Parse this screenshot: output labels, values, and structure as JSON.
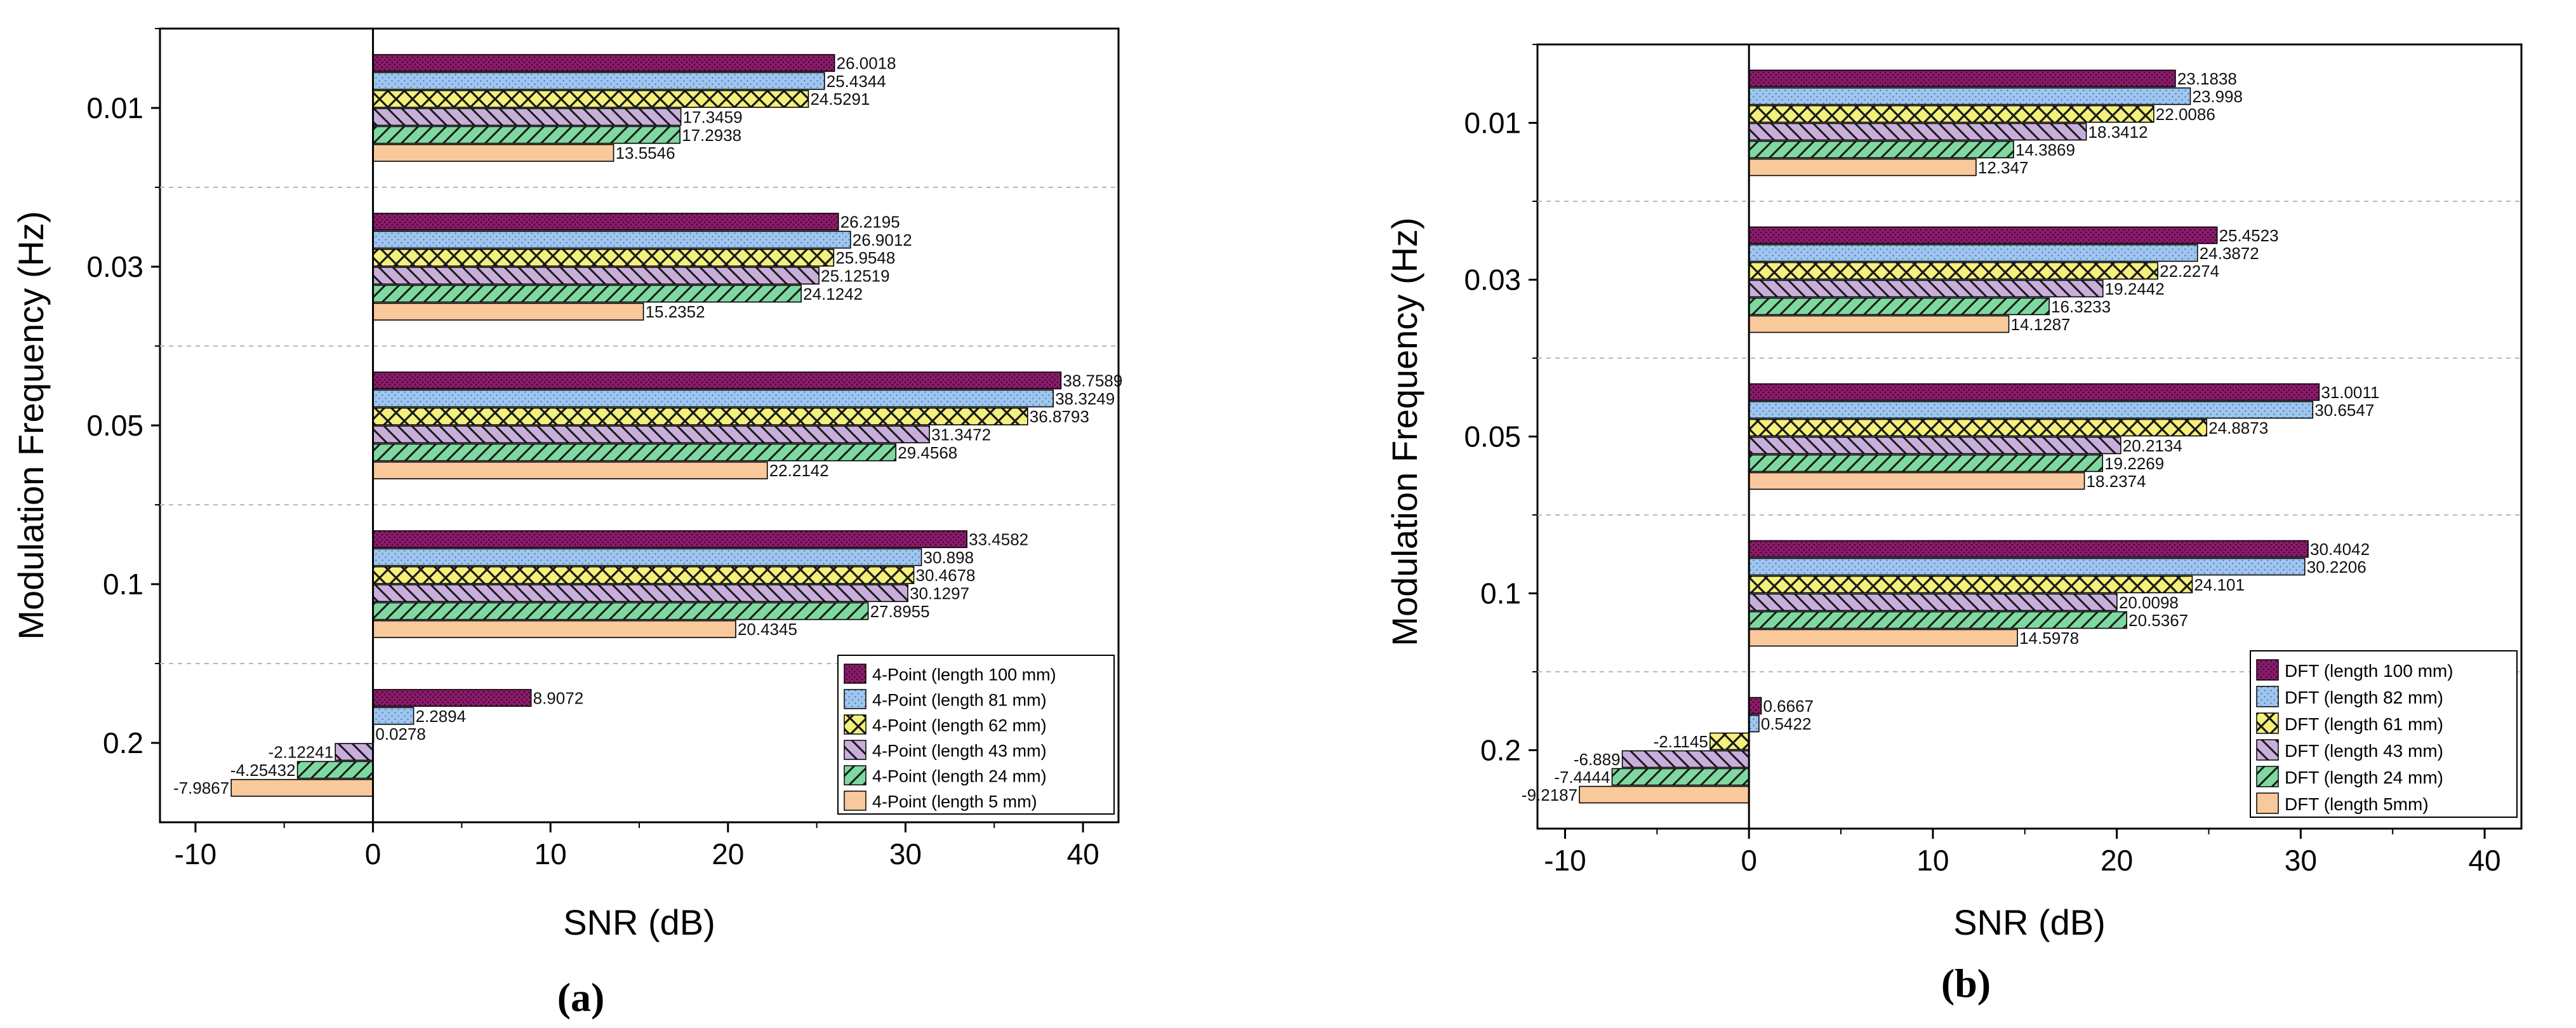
{
  "colors": {
    "series": [
      "#8B1A6B",
      "#9EC6F0",
      "#F4F07A",
      "#C9AEDB",
      "#7ED9A0",
      "#F9C89B"
    ],
    "hatch": "#1a1a1a",
    "grid": "#b8b8b8",
    "axis": "#000000"
  },
  "chart_data": [
    {
      "type": "bar",
      "orientation": "horizontal",
      "panel_label": "a",
      "caption": "(a)",
      "xlabel": "SNR (dB)",
      "ylabel": "Modulation Frequency (Hz)",
      "xlim": [
        -12,
        42
      ],
      "xticks": [
        -10,
        0,
        10,
        20,
        30,
        40
      ],
      "categories": [
        "0.01",
        "0.03",
        "0.05",
        "0.1",
        "0.2"
      ],
      "legend_position": "bottom-right",
      "series": [
        {
          "name": "4-Point (length 100 mm)",
          "values": [
            26.0018,
            26.2195,
            38.7589,
            33.4582,
            8.9072
          ],
          "labels": [
            "26.0018",
            "26.2195",
            "38.7589",
            "33.4582",
            "8.9072"
          ]
        },
        {
          "name": "4-Point (length 81 mm)",
          "values": [
            25.4344,
            26.9012,
            38.3249,
            30.898,
            2.2894
          ],
          "labels": [
            "25.4344",
            "26.9012",
            "38.3249",
            "30.898",
            "2.2894"
          ]
        },
        {
          "name": "4-Point (length 62 mm)",
          "values": [
            24.5291,
            25.9548,
            36.8793,
            30.4678,
            0.0278
          ],
          "labels": [
            "24.5291",
            "25.9548",
            "36.8793",
            "30.4678",
            "0.0278"
          ]
        },
        {
          "name": "4-Point (length 43 mm)",
          "values": [
            17.3459,
            25.12519,
            31.3472,
            30.1297,
            -2.12241
          ],
          "labels": [
            "17.3459",
            "25.12519",
            "31.3472",
            "30.1297",
            "-2.12241"
          ]
        },
        {
          "name": "4-Point (length 24 mm)",
          "values": [
            17.2938,
            24.1242,
            29.4568,
            27.8955,
            -4.25432
          ],
          "labels": [
            "17.2938",
            "24.1242",
            "29.4568",
            "27.8955",
            "-4.25432"
          ]
        },
        {
          "name": "4-Point (length 5 mm)",
          "values": [
            13.5546,
            15.2352,
            22.2142,
            20.4345,
            -7.9867
          ],
          "labels": [
            "13.5546",
            "15.2352",
            "22.2142",
            "20.4345",
            "-7.9867"
          ]
        }
      ]
    },
    {
      "type": "bar",
      "orientation": "horizontal",
      "panel_label": "b",
      "caption": "(b)",
      "xlabel": "SNR (dB)",
      "ylabel": "Modulation Frequency (Hz)",
      "xlim": [
        -11.5,
        42
      ],
      "xticks": [
        -10,
        0,
        10,
        20,
        30,
        40
      ],
      "categories": [
        "0.01",
        "0.03",
        "0.05",
        "0.1",
        "0.2"
      ],
      "legend_position": "bottom-right",
      "series": [
        {
          "name": "DFT (length 100 mm)",
          "values": [
            23.1838,
            25.4523,
            31.0011,
            30.4042,
            0.6667
          ],
          "labels": [
            "23.1838",
            "25.4523",
            "31.0011",
            "30.4042",
            "0.6667"
          ]
        },
        {
          "name": "DFT (length 82 mm)",
          "values": [
            23.998,
            24.3872,
            30.6547,
            30.2206,
            0.5422
          ],
          "labels": [
            "23.998",
            "24.3872",
            "30.6547",
            "30.2206",
            "0.5422"
          ]
        },
        {
          "name": "DFT (length 61 mm)",
          "values": [
            22.0086,
            22.2274,
            24.8873,
            24.101,
            -2.1145
          ],
          "labels": [
            "22.0086",
            "22.2274",
            "24.8873",
            "24.101",
            "-2.1145"
          ]
        },
        {
          "name": "DFT (length 43 mm)",
          "values": [
            18.3412,
            19.2442,
            20.2134,
            20.0098,
            -6.889
          ],
          "labels": [
            "18.3412",
            "19.2442",
            "20.2134",
            "20.0098",
            "-6.889"
          ]
        },
        {
          "name": "DFT (length 24 mm)",
          "values": [
            14.3869,
            16.3233,
            19.2269,
            20.5367,
            -7.4444
          ],
          "labels": [
            "14.3869",
            "16.3233",
            "19.2269",
            "20.5367",
            "-7.4444"
          ]
        },
        {
          "name": "DFT (length 5mm)",
          "values": [
            12.347,
            14.1287,
            18.2374,
            14.5978,
            -9.2187
          ],
          "labels": [
            "12.347",
            "14.1287",
            "18.2374",
            "14.5978",
            "-9.2187"
          ]
        }
      ]
    }
  ]
}
